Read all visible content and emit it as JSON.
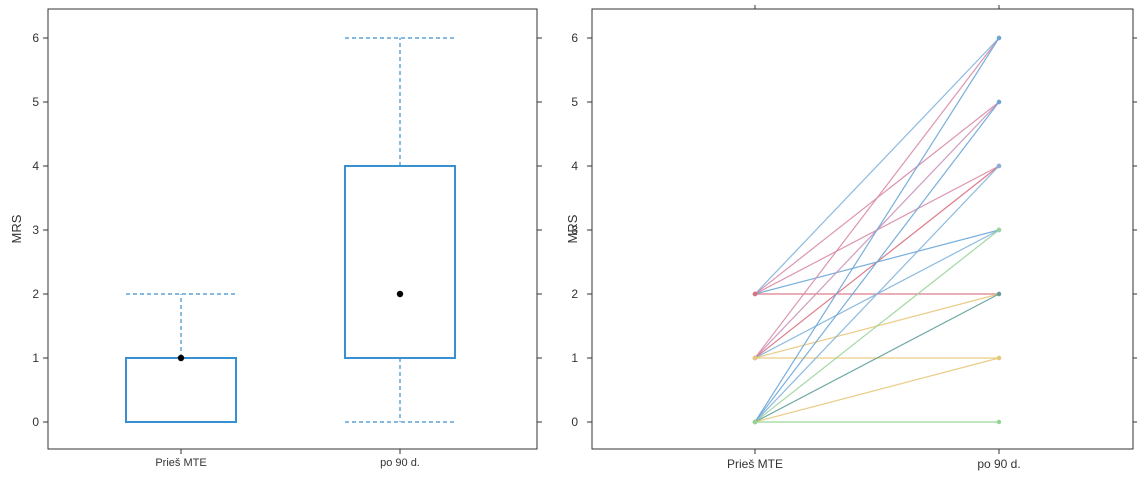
{
  "chart_data": [
    {
      "type": "box",
      "ylabel": "MRS",
      "ylim": [
        -0.3,
        6.5
      ],
      "yticks": [
        0,
        1,
        2,
        3,
        4,
        5,
        6
      ],
      "categories": [
        "Prieš MTE",
        "po 90 d."
      ],
      "boxes": [
        {
          "category": "Prieš MTE",
          "whisker_low": 0,
          "q1": 0,
          "median": 1,
          "q3": 1,
          "whisker_high": 2
        },
        {
          "category": "po 90 d.",
          "whisker_low": 0,
          "q1": 1,
          "median": 2,
          "q3": 4,
          "whisker_high": 6
        }
      ],
      "colors": {
        "box": "#3a8fd0",
        "median_point": "#000000"
      }
    },
    {
      "type": "line",
      "ylabel": "MRS",
      "ylim": [
        -0.3,
        6.5
      ],
      "yticks": [
        0,
        1,
        2,
        3,
        4,
        5,
        6
      ],
      "categories": [
        "Prieš MTE",
        "po 90 d."
      ],
      "series": [
        {
          "values": [
            2,
            6
          ],
          "color": "#7fb3dd"
        },
        {
          "values": [
            2,
            5
          ],
          "color": "#d98aa6"
        },
        {
          "values": [
            2,
            4
          ],
          "color": "#d98aa6"
        },
        {
          "values": [
            2,
            3
          ],
          "color": "#6aa6d8"
        },
        {
          "values": [
            2,
            2
          ],
          "color": "#d9707f"
        },
        {
          "values": [
            1,
            6
          ],
          "color": "#d98aa6"
        },
        {
          "values": [
            1,
            5
          ],
          "color": "#c992b8"
        },
        {
          "values": [
            1,
            4
          ],
          "color": "#d9707f"
        },
        {
          "values": [
            1,
            3
          ],
          "color": "#7fb3dd"
        },
        {
          "values": [
            1,
            2
          ],
          "color": "#e8c77a"
        },
        {
          "values": [
            1,
            1
          ],
          "color": "#e8c77a"
        },
        {
          "values": [
            0,
            6
          ],
          "color": "#6aa6d8"
        },
        {
          "values": [
            0,
            5
          ],
          "color": "#6aa6d8"
        },
        {
          "values": [
            0,
            4
          ],
          "color": "#7fb3dd"
        },
        {
          "values": [
            0,
            3
          ],
          "color": "#9ad49a"
        },
        {
          "values": [
            0,
            2
          ],
          "color": "#5f9f9a"
        },
        {
          "values": [
            0,
            1
          ],
          "color": "#e8c77a"
        },
        {
          "values": [
            0,
            0
          ],
          "color": "#8fd48f"
        }
      ]
    }
  ]
}
